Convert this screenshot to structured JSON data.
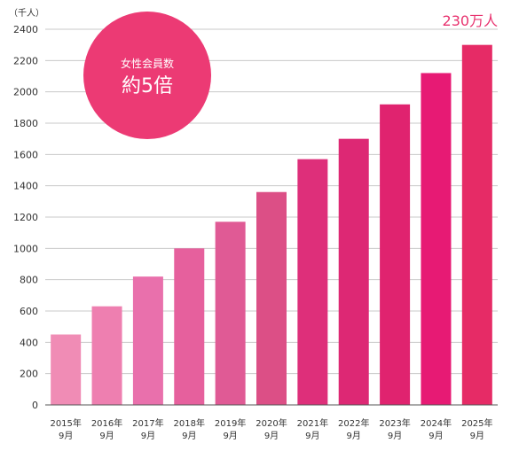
{
  "chart_data": {
    "type": "bar",
    "unit_label": "（千人）",
    "categories": [
      [
        "2015年",
        "9月"
      ],
      [
        "2016年",
        "9月"
      ],
      [
        "2017年",
        "9月"
      ],
      [
        "2018年",
        "9月"
      ],
      [
        "2019年",
        "9月"
      ],
      [
        "2020年",
        "9月"
      ],
      [
        "2021年",
        "9月"
      ],
      [
        "2022年",
        "9月"
      ],
      [
        "2023年",
        "9月"
      ],
      [
        "2024年",
        "9月"
      ],
      [
        "2025年",
        "9月"
      ]
    ],
    "values": [
      450,
      630,
      820,
      1000,
      1170,
      1360,
      1570,
      1700,
      1920,
      2120,
      2300
    ],
    "colors": [
      "#f08cb5",
      "#ee7fb0",
      "#e970ac",
      "#e6609d",
      "#e05a95",
      "#dc4f86",
      "#de2f7a",
      "#dd2874",
      "#e0236f",
      "#e71a74",
      "#e62b66"
    ],
    "ylim": [
      0,
      2400
    ],
    "yticks": [
      0,
      200,
      400,
      600,
      800,
      1000,
      1200,
      1400,
      1600,
      1800,
      2000,
      2200,
      2400
    ],
    "grid": true,
    "annotations": {
      "last_bar_label": "230万人",
      "badge_line1": "女性会員数",
      "badge_line2": "約5倍",
      "badge_color": "#ec3a74"
    }
  }
}
